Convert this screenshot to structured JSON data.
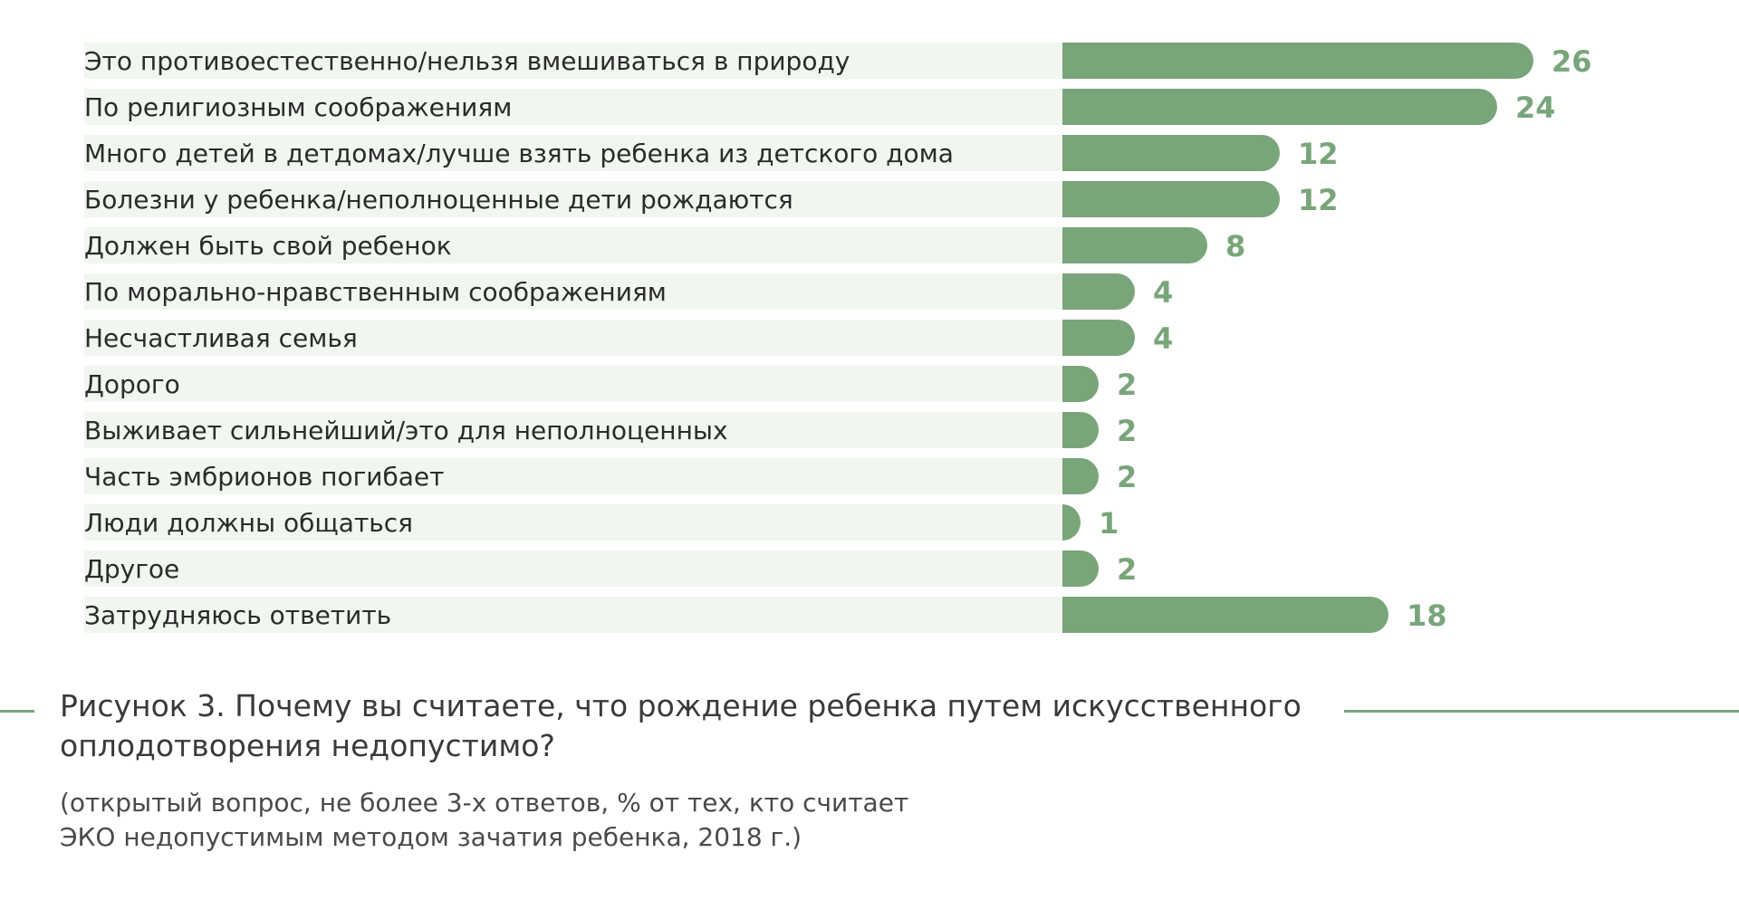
{
  "colors": {
    "bar": "#79a57a",
    "row_background": "#f1f6f0",
    "value_text": "#79a57a",
    "rule": "#79a57a"
  },
  "caption": {
    "title": "Рисунок 3. Почему вы считаете, что рождение ребенка путем искусственного оплодотворения недопустимо?",
    "subtitle": "(открытый вопрос, не более 3-х ответов, % от тех, кто считает ЭКО недопустимым методом зачатия ребенка, 2018 г.)"
  },
  "chart_data": {
    "type": "bar",
    "orientation": "horizontal",
    "categories": [
      "Это противоестественно/нельзя вмешиваться в природу",
      "По религиозным соображениям",
      "Много детей в детдомах/лучше взять ребенка из детского дома",
      "Болезни у ребенка/неполноценные дети рождаются",
      "Должен быть свой ребенок",
      "По морально-нравственным соображениям",
      "Несчастливая семья",
      "Дорого",
      "Выживает сильнейший/это для неполноценных",
      "Часть эмбрионов погибает",
      "Люди должны общаться",
      "Другое",
      "Затрудняюсь ответить"
    ],
    "values": [
      26,
      24,
      12,
      12,
      8,
      4,
      4,
      2,
      2,
      2,
      1,
      2,
      18
    ],
    "value_labels": [
      "26",
      "24",
      "12",
      "12",
      "8",
      "4",
      "4",
      "2",
      "2",
      "2",
      "1",
      "2",
      "18"
    ],
    "xlim": [
      0,
      26
    ],
    "grid": false,
    "legend": "none"
  }
}
